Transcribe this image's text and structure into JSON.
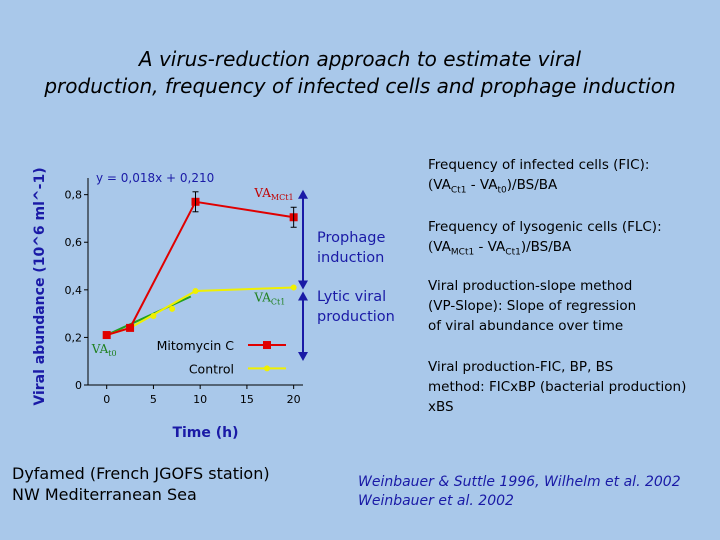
{
  "slide": {
    "title_line1": "A virus-reduction approach to estimate viral",
    "title_line2": "production, frequency of infected cells and prophage induction",
    "fic": {
      "line1": "Frequency of infected cells (FIC):",
      "open": "(",
      "va": "VA",
      "sub_a": "Ct1",
      "minus": " - ",
      "sub_b": "t0",
      "rest": ")/BS/BA"
    },
    "flc": {
      "line1": "Frequency of lysogenic cells (FLC):",
      "open": "(",
      "va": "VA",
      "sub_a": "MCt1",
      "minus": " - ",
      "sub_b": "Ct1",
      "rest": ")/BS/BA"
    },
    "vp_slope": {
      "line1": "Viral production-slope method",
      "line2": "(VP-Slope): Slope of regression",
      "line3": "of viral abundance over time"
    },
    "vp_fic": {
      "line1": "Viral production-FIC, BP, BS",
      "line2": "method: FICxBP (bacterial production)",
      "line3": "xBS"
    },
    "station": {
      "line1": "Dyfamed (French JGOFS station)",
      "line2": "NW Mediterranean Sea"
    },
    "references": {
      "line1": "Weinbauer & Suttle 1996, Wilhelm et al. 2002",
      "line2": "Weinbauer et al. 2002"
    }
  },
  "chart_data": {
    "type": "line",
    "xlabel": "Time (h)",
    "ylabel": "Viral abundance (10^6 ml^-1)",
    "xlim": [
      -2,
      21
    ],
    "ylim": [
      0,
      0.87
    ],
    "x_ticks": [
      0,
      5,
      10,
      15,
      20
    ],
    "y_ticks": [
      0,
      0.2,
      0.4,
      0.6,
      0.8
    ],
    "x_tick_labels": [
      "0",
      "5",
      "10",
      "15",
      "20"
    ],
    "y_tick_labels": [
      "0",
      "0,2",
      "0,4",
      "0,6",
      "0,8"
    ],
    "grid": false,
    "equation": "y = 0,018x + 0,210",
    "series": [
      {
        "name": "Mitomycin C",
        "color": "#e00000",
        "marker": "square",
        "x": [
          0,
          2.5,
          9.5,
          20
        ],
        "y": [
          0.21,
          0.24,
          0.77,
          0.705
        ]
      },
      {
        "name": "Control",
        "color": "#f0f000",
        "marker": "circle",
        "x": [
          0,
          2.5,
          9.5,
          20
        ],
        "y": [
          0.21,
          0.24,
          0.395,
          0.41
        ]
      }
    ],
    "regression": {
      "color": "#20a020",
      "x": [
        0,
        9
      ],
      "y": [
        0.21,
        0.372
      ]
    },
    "control_extra_points": {
      "x": [
        5,
        7
      ],
      "y": [
        0.29,
        0.32
      ]
    },
    "point_labels": [
      {
        "text": "VA",
        "sub": "MCt1",
        "x": 15.8,
        "y": 0.79
      },
      {
        "text": "VA",
        "sub": "Ct1",
        "x": 15.8,
        "y": 0.35
      },
      {
        "text": "VA",
        "sub": "t0",
        "x": -1.6,
        "y": 0.135
      }
    ],
    "annotations": {
      "arrow_x": 21,
      "prophage_label": [
        "Prophage",
        "induction"
      ],
      "lytic_label": [
        "Lytic viral",
        "production"
      ],
      "arrow_top": 0.77,
      "arrow_mid": 0.41,
      "arrow_bottom": 0.21
    },
    "legend_position": "bottom"
  }
}
